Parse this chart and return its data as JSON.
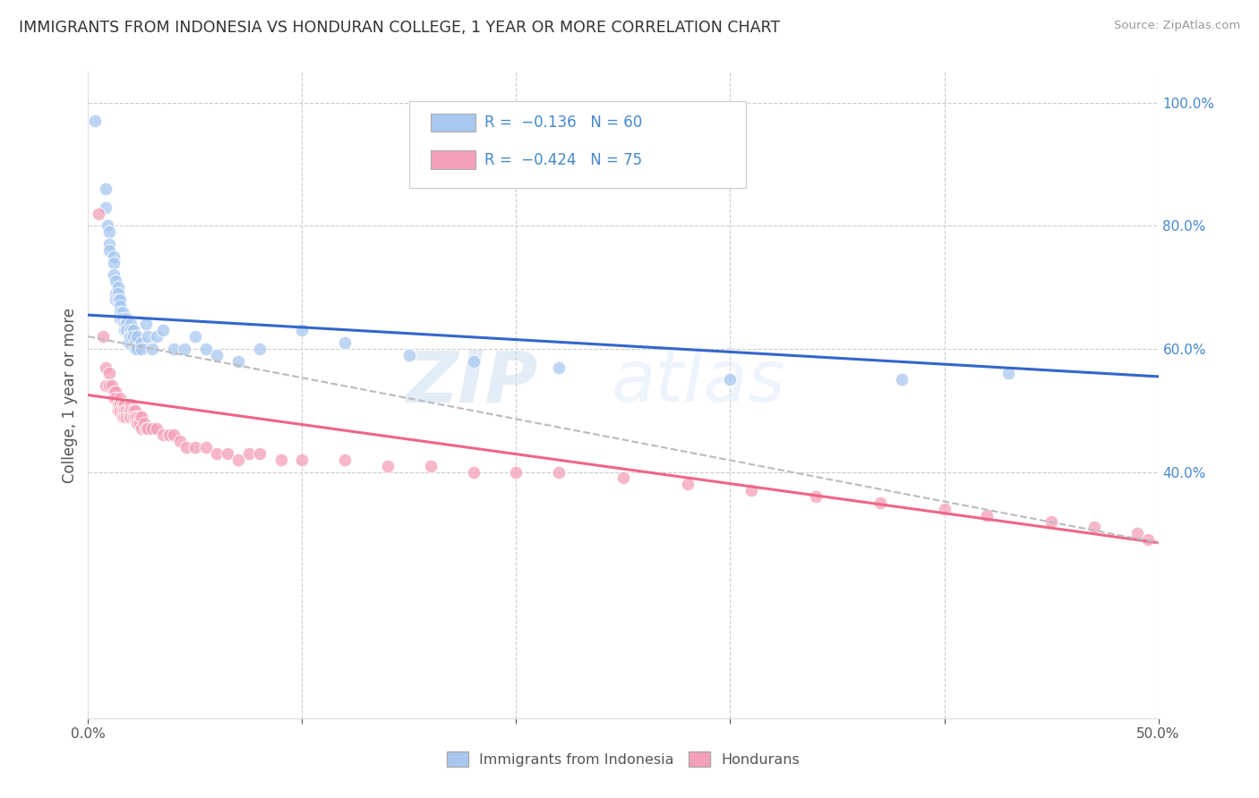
{
  "title": "IMMIGRANTS FROM INDONESIA VS HONDURAN COLLEGE, 1 YEAR OR MORE CORRELATION CHART",
  "source": "Source: ZipAtlas.com",
  "ylabel": "College, 1 year or more",
  "x_min": 0.0,
  "x_max": 0.5,
  "y_min": 0.0,
  "y_max": 1.05,
  "color_indonesia": "#A8C8F0",
  "color_honduran": "#F4A0B8",
  "line_color_indonesia": "#3366CC",
  "line_color_honduran": "#EE6688",
  "line_color_dashed": "#BBBBBB",
  "watermark_zip": "ZIP",
  "watermark_atlas": "atlas",
  "background_color": "#FFFFFF",
  "grid_color": "#CCCCCC",
  "indonesia_x": [
    0.003,
    0.008,
    0.008,
    0.009,
    0.01,
    0.01,
    0.01,
    0.012,
    0.012,
    0.012,
    0.013,
    0.013,
    0.013,
    0.014,
    0.014,
    0.014,
    0.015,
    0.015,
    0.015,
    0.015,
    0.016,
    0.016,
    0.017,
    0.017,
    0.018,
    0.018,
    0.018,
    0.019,
    0.019,
    0.02,
    0.02,
    0.02,
    0.021,
    0.021,
    0.022,
    0.022,
    0.023,
    0.023,
    0.025,
    0.025,
    0.027,
    0.028,
    0.03,
    0.032,
    0.035,
    0.04,
    0.045,
    0.05,
    0.055,
    0.06,
    0.07,
    0.08,
    0.1,
    0.12,
    0.15,
    0.18,
    0.22,
    0.3,
    0.38,
    0.43
  ],
  "indonesia_y": [
    0.97,
    0.86,
    0.83,
    0.8,
    0.79,
    0.77,
    0.76,
    0.75,
    0.74,
    0.72,
    0.71,
    0.69,
    0.68,
    0.7,
    0.69,
    0.68,
    0.68,
    0.67,
    0.66,
    0.65,
    0.66,
    0.65,
    0.64,
    0.63,
    0.65,
    0.64,
    0.63,
    0.62,
    0.61,
    0.64,
    0.63,
    0.62,
    0.63,
    0.62,
    0.61,
    0.6,
    0.62,
    0.6,
    0.61,
    0.6,
    0.64,
    0.62,
    0.6,
    0.62,
    0.63,
    0.6,
    0.6,
    0.62,
    0.6,
    0.59,
    0.58,
    0.6,
    0.63,
    0.61,
    0.59,
    0.58,
    0.57,
    0.55,
    0.55,
    0.56
  ],
  "honduran_x": [
    0.005,
    0.007,
    0.008,
    0.008,
    0.01,
    0.01,
    0.011,
    0.012,
    0.012,
    0.013,
    0.013,
    0.014,
    0.014,
    0.015,
    0.015,
    0.015,
    0.016,
    0.016,
    0.016,
    0.017,
    0.017,
    0.017,
    0.018,
    0.018,
    0.019,
    0.019,
    0.02,
    0.02,
    0.02,
    0.021,
    0.021,
    0.022,
    0.022,
    0.023,
    0.023,
    0.024,
    0.024,
    0.025,
    0.025,
    0.026,
    0.027,
    0.028,
    0.03,
    0.032,
    0.035,
    0.038,
    0.04,
    0.043,
    0.046,
    0.05,
    0.055,
    0.06,
    0.065,
    0.07,
    0.075,
    0.08,
    0.09,
    0.1,
    0.12,
    0.14,
    0.16,
    0.18,
    0.2,
    0.22,
    0.25,
    0.28,
    0.31,
    0.34,
    0.37,
    0.4,
    0.42,
    0.45,
    0.47,
    0.49,
    0.495
  ],
  "honduran_y": [
    0.82,
    0.62,
    0.57,
    0.54,
    0.56,
    0.54,
    0.54,
    0.53,
    0.52,
    0.53,
    0.52,
    0.51,
    0.5,
    0.52,
    0.51,
    0.5,
    0.51,
    0.5,
    0.49,
    0.51,
    0.5,
    0.49,
    0.5,
    0.49,
    0.5,
    0.49,
    0.51,
    0.5,
    0.49,
    0.5,
    0.49,
    0.5,
    0.49,
    0.49,
    0.48,
    0.49,
    0.48,
    0.49,
    0.47,
    0.48,
    0.47,
    0.47,
    0.47,
    0.47,
    0.46,
    0.46,
    0.46,
    0.45,
    0.44,
    0.44,
    0.44,
    0.43,
    0.43,
    0.42,
    0.43,
    0.43,
    0.42,
    0.42,
    0.42,
    0.41,
    0.41,
    0.4,
    0.4,
    0.4,
    0.39,
    0.38,
    0.37,
    0.36,
    0.35,
    0.34,
    0.33,
    0.32,
    0.31,
    0.3,
    0.29
  ],
  "indo_line_x0": 0.0,
  "indo_line_x1": 0.5,
  "indo_line_y0": 0.655,
  "indo_line_y1": 0.555,
  "hond_line_x0": 0.0,
  "hond_line_x1": 0.5,
  "hond_line_y0": 0.525,
  "hond_line_y1": 0.285,
  "dash_line_x0": 0.0,
  "dash_line_x1": 0.5,
  "dash_line_y0": 0.62,
  "dash_line_y1": 0.285
}
